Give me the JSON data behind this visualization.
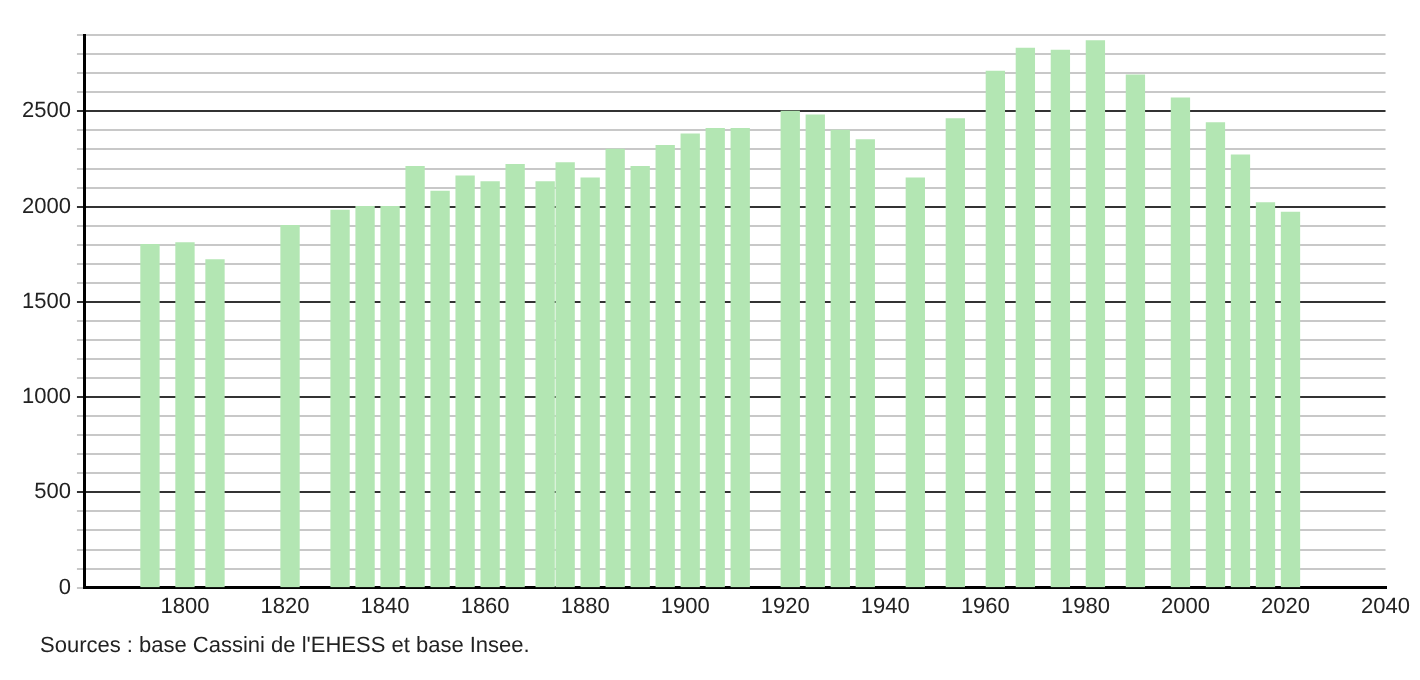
{
  "chart_data": {
    "type": "bar",
    "x": [
      1793,
      1800,
      1806,
      1821,
      1831,
      1836,
      1841,
      1846,
      1851,
      1856,
      1861,
      1866,
      1872,
      1876,
      1881,
      1886,
      1891,
      1896,
      1901,
      1906,
      1911,
      1921,
      1926,
      1931,
      1936,
      1946,
      1954,
      1962,
      1968,
      1975,
      1982,
      1990,
      1999,
      2006,
      2011,
      2016,
      2021
    ],
    "values": [
      1800,
      1810,
      1720,
      1900,
      1980,
      2000,
      2000,
      2210,
      2080,
      2160,
      2130,
      2220,
      2130,
      2230,
      2150,
      2300,
      2210,
      2320,
      2380,
      2410,
      2410,
      2500,
      2480,
      2400,
      2350,
      2150,
      2460,
      2710,
      2830,
      2820,
      2870,
      2690,
      2570,
      2440,
      2270,
      2020,
      1970
    ],
    "color": "#b3e6b3",
    "xlim": [
      1780,
      2040
    ],
    "xticks": [
      1800,
      1820,
      1840,
      1860,
      1880,
      1900,
      1920,
      1940,
      1960,
      1980,
      2000,
      2020,
      2040
    ],
    "ylim": [
      0,
      2900
    ],
    "yticks": [
      0,
      {
        "value": 100,
        "label": null
      },
      {
        "value": 200,
        "label": null
      },
      {
        "value": 300,
        "label": null
      },
      {
        "value": 400,
        "label": null
      },
      500,
      {
        "value": 600,
        "label": null
      },
      {
        "value": 700,
        "label": null
      },
      {
        "value": 800,
        "label": null
      },
      {
        "value": 900,
        "label": null
      },
      1000,
      {
        "value": 1100,
        "label": null
      },
      {
        "value": 1200,
        "label": null
      },
      {
        "value": 1300,
        "label": null
      },
      {
        "value": 1400,
        "label": null
      },
      1500,
      {
        "value": 1600,
        "label": null
      },
      {
        "value": 1700,
        "label": null
      },
      {
        "value": 1800,
        "label": null
      },
      {
        "value": 1900,
        "label": null
      },
      2000,
      {
        "value": 2100,
        "label": null
      },
      {
        "value": 2200,
        "label": null
      },
      {
        "value": 2300,
        "label": null
      },
      {
        "value": 2400,
        "label": null
      },
      2500,
      {
        "value": 2600,
        "label": null
      },
      {
        "value": 2700,
        "label": null
      },
      {
        "value": 2800,
        "label": null
      },
      {
        "value": 2900,
        "label": null
      }
    ],
    "grid": "y",
    "legend": false,
    "annotations": [
      "Sources : base Cassini de l'EHESS et base Insee."
    ]
  }
}
